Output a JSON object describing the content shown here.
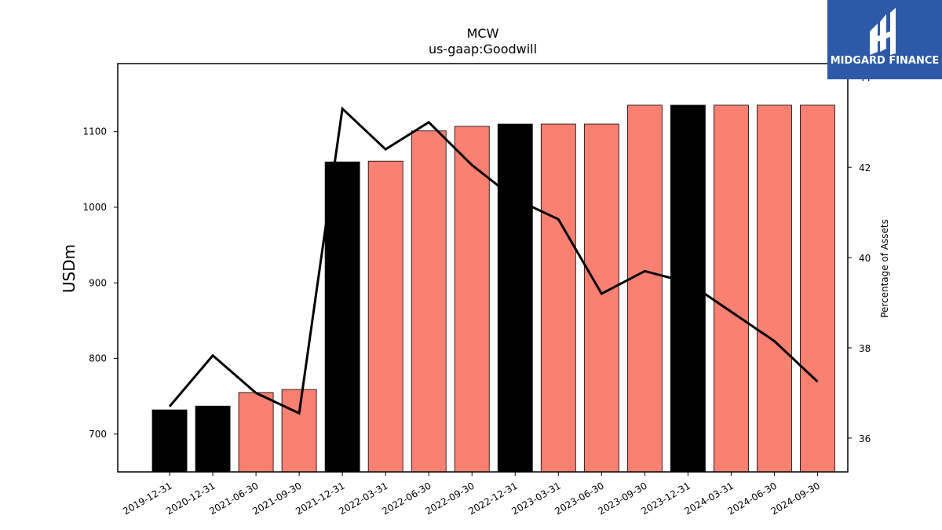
{
  "chart_data": {
    "type": "bar",
    "title": "MCW",
    "subtitle": "us-gaap:Goodwill",
    "ylabel": "USDm",
    "ylabel_right": "Percentage of Assets",
    "categories": [
      "2019-12-31",
      "2020-12-31",
      "2021-06-30",
      "2021-09-30",
      "2021-12-31",
      "2022-03-31",
      "2022-06-30",
      "2022-09-30",
      "2022-12-31",
      "2023-03-31",
      "2023-06-30",
      "2023-09-30",
      "2023-12-31",
      "2024-03-31",
      "2024-06-30",
      "2024-09-30"
    ],
    "series": [
      {
        "type": "bar",
        "axis": "left",
        "values": [
          732,
          737,
          755,
          759,
          1060,
          1061,
          1101,
          1107,
          1110,
          1110,
          1110,
          1135,
          1135,
          1135,
          1135,
          1135
        ],
        "colors": [
          "#000000",
          "#000000",
          "#fa8072",
          "#fa8072",
          "#000000",
          "#fa8072",
          "#fa8072",
          "#fa8072",
          "#000000",
          "#fa8072",
          "#fa8072",
          "#fa8072",
          "#000000",
          "#fa8072",
          "#fa8072",
          "#fa8072"
        ]
      },
      {
        "type": "line",
        "axis": "right",
        "color": "#000000",
        "values": [
          36.7,
          37.83,
          37.0,
          36.55,
          43.3,
          42.4,
          43.0,
          42.05,
          41.3,
          40.85,
          39.2,
          39.7,
          39.45,
          38.8,
          38.15,
          37.25
        ]
      }
    ],
    "ylim": [
      650,
      1190
    ],
    "yticks": [
      700,
      800,
      900,
      1000,
      1100
    ],
    "ylim_right": [
      35.25,
      44.3
    ],
    "yticks_right": [
      36,
      38,
      40,
      42,
      44
    ],
    "grid": false,
    "legend": "none"
  },
  "logo": {
    "text": "MIDGARD FINANCE",
    "color": "#2c5aa8"
  }
}
